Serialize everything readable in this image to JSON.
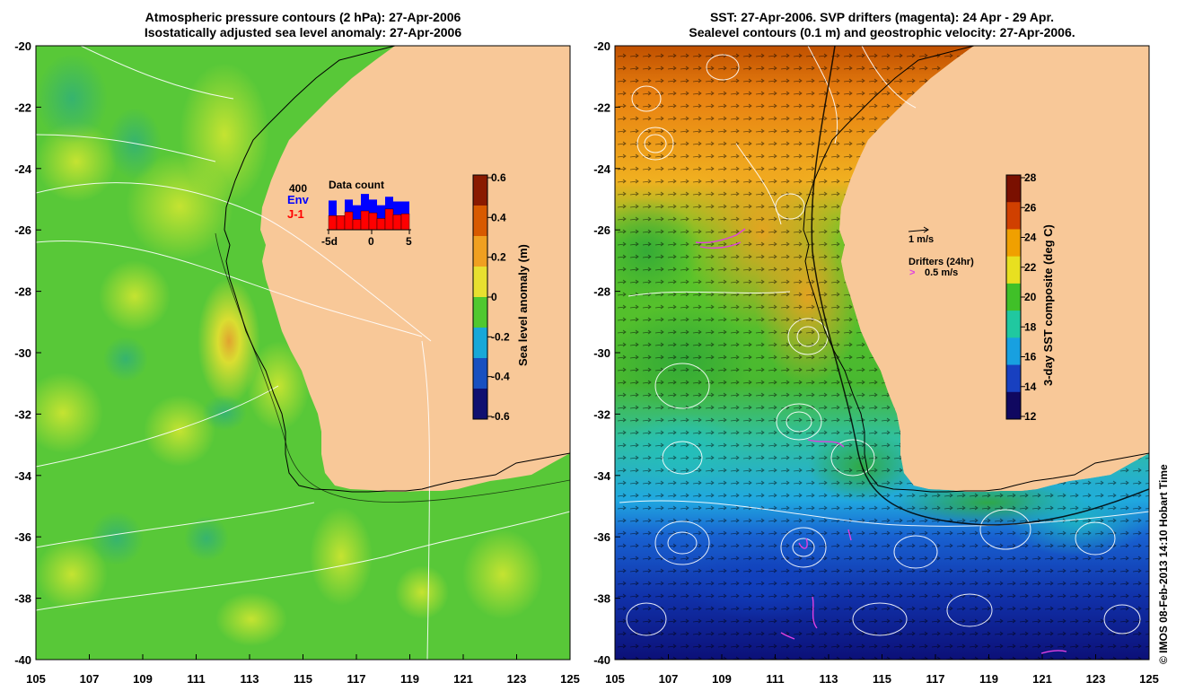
{
  "left_panel": {
    "title_line1": "Atmospheric pressure contours (2 hPa): 27-Apr-2006",
    "title_line2": "Isostatically adjusted sea level anomaly: 27-Apr-2006",
    "colorbar": {
      "label": "Sea level anomaly (m)",
      "ticks": [
        "0.6",
        "0.4",
        "0.2",
        "0",
        "-0.2",
        "-0.4",
        "-0.6"
      ],
      "colors": [
        "#8a1a00",
        "#d85a00",
        "#f0a020",
        "#e8e030",
        "#50c830",
        "#18a8d8",
        "#1850c0",
        "#101070"
      ]
    },
    "inset": {
      "title": "Data count",
      "ymax": "400",
      "series": [
        "Env",
        "J-1"
      ],
      "series_colors": [
        "#0000ff",
        "#ff0000"
      ],
      "xticks": [
        "-5d",
        "0",
        "5"
      ],
      "env_counts": [
        310,
        150,
        320,
        260,
        380,
        320,
        260,
        350,
        300,
        300
      ],
      "j1_counts": [
        150,
        150,
        190,
        110,
        200,
        180,
        120,
        220,
        160,
        170
      ]
    }
  },
  "right_panel": {
    "title_line1": "SST: 27-Apr-2006. SVP drifters (magenta): 24 Apr - 29 Apr.",
    "title_line2": "Sealevel contours (0.1 m) and geostrophic velocity: 27-Apr-2006.",
    "colorbar": {
      "label": "3-day SST composite (deg C)",
      "ticks": [
        "28",
        "26",
        "24",
        "22",
        "20",
        "18",
        "16",
        "14",
        "12"
      ],
      "colors": [
        "#7a1000",
        "#d04000",
        "#f0a000",
        "#e8e020",
        "#40c028",
        "#20c8a0",
        "#18a0e0",
        "#1840c0",
        "#100860"
      ]
    },
    "velocity_key": "1 m/s",
    "drifter_key_title": "Drifters (24hr)",
    "drifter_key_speed": "0.5 m/s",
    "drifter_key_glyph": ">"
  },
  "axes": {
    "lat_labels": [
      "-20",
      "-22",
      "-24",
      "-26",
      "-28",
      "-30",
      "-32",
      "-34",
      "-36",
      "-38",
      "-40"
    ],
    "lon_labels": [
      "105",
      "107",
      "109",
      "111",
      "113",
      "115",
      "117",
      "119",
      "121",
      "123",
      "125"
    ]
  },
  "credit": "© IMOS 08-Feb-2013 14:10 Hobart Time",
  "colors": {
    "land": "#f8c898",
    "ocean_left": "#58c838",
    "sst_warm": "#e89018",
    "sst_cold": "#10187a"
  }
}
